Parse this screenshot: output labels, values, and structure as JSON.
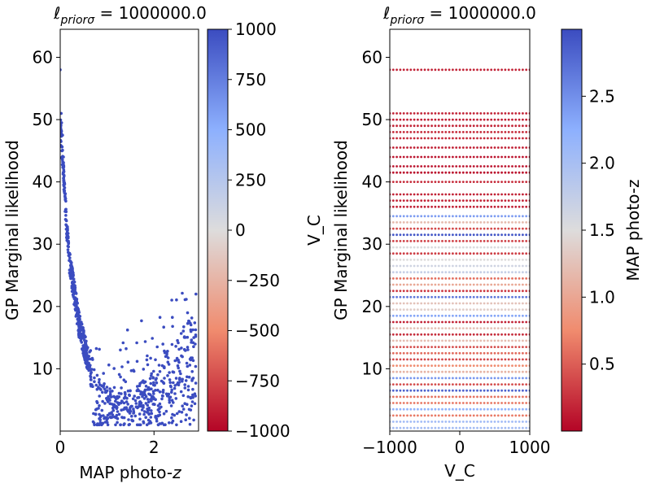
{
  "chart_data": [
    {
      "type": "scatter",
      "title": "ℓpriorσ = 1000000.0",
      "title_main": "ℓ",
      "title_sub": "priorσ",
      "title_rest": " = 1000000.0",
      "xlabel": "MAP photo-",
      "xlabel_italic": "z",
      "ylabel": "GP Marginal likelihood",
      "xlim": [
        0,
        2.95
      ],
      "ylim": [
        0,
        64.5
      ],
      "x_ticks": [
        0,
        2
      ],
      "y_ticks": [
        10,
        20,
        30,
        40,
        50,
        60
      ],
      "point_color": "#3b4cc0",
      "colorbar": {
        "colormap": "coolwarm",
        "range": [
          -1000,
          1000
        ],
        "ticks": [
          1000,
          750,
          500,
          250,
          0,
          -250,
          -500,
          -750,
          -1000
        ],
        "tick_labels": [
          "1000",
          "750",
          "500",
          "250",
          "0",
          "−250",
          "−500",
          "−750",
          "−1000"
        ]
      },
      "curve_description": {
        "trend_anchors": [
          [
            0.0,
            50
          ],
          [
            0.05,
            45
          ],
          [
            0.1,
            38
          ],
          [
            0.15,
            32
          ],
          [
            0.2,
            28
          ],
          [
            0.3,
            23
          ],
          [
            0.4,
            18
          ],
          [
            0.5,
            15
          ],
          [
            0.6,
            12
          ],
          [
            0.8,
            9
          ],
          [
            1.0,
            7
          ],
          [
            1.3,
            6
          ],
          [
            1.6,
            7
          ],
          [
            2.0,
            10
          ],
          [
            2.4,
            14
          ],
          [
            2.9,
            20
          ]
        ]
      }
    },
    {
      "type": "scatter",
      "title": "ℓpriorσ = 1000000.0",
      "title_main": "ℓ",
      "title_sub": "priorσ",
      "title_rest": " = 1000000.0",
      "xlabel": "V_C",
      "ylabel": "GP Marginal likelihood",
      "overlay_label": "V_C",
      "xlim": [
        -1000,
        1000
      ],
      "ylim": [
        0,
        64.5
      ],
      "x_ticks": [
        -1000,
        0,
        1000
      ],
      "x_tick_labels": [
        "−1000",
        "0",
        "1000"
      ],
      "y_ticks": [
        10,
        20,
        30,
        40,
        50,
        60
      ],
      "colorbar": {
        "colormap": "coolwarm",
        "label": "MAP photo-z",
        "range": [
          0,
          3.0
        ],
        "ticks": [
          0.5,
          1.0,
          1.5,
          2.0,
          2.5
        ],
        "tick_labels": [
          "0.5",
          "1.0",
          "1.5",
          "2.0",
          "2.5"
        ]
      },
      "row_y_values": [
        0.5,
        1.5,
        2.5,
        3.5,
        4.5,
        5.5,
        6.5,
        7.5,
        8.5,
        9.5,
        10.5,
        11.5,
        12.5,
        13.5,
        14.5,
        15.5,
        16.5,
        17.5,
        18.5,
        19.5,
        20.5,
        21.5,
        22.5,
        23.5,
        24.5,
        25.5,
        26.5,
        27.5,
        28.5,
        29.5,
        30.5,
        31.5,
        32.5,
        33.5,
        34.5,
        36,
        37,
        38,
        40,
        41.5,
        42.5,
        44,
        45.5,
        47,
        48,
        49,
        50,
        51,
        58
      ]
    }
  ]
}
